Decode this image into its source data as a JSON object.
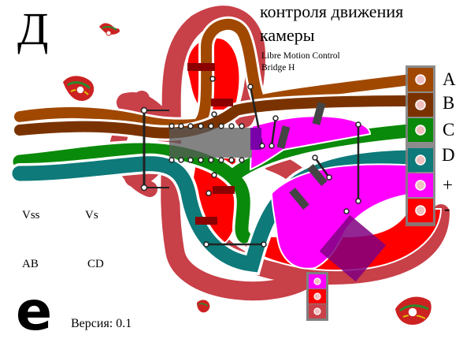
{
  "header": {
    "big_letter": "Д",
    "title_line1": "контроля движения",
    "title_line2": "камеры",
    "subtitle_line1": "Libre Motion Control",
    "subtitle_line2": "Bridge H"
  },
  "connector_labels": [
    "A",
    "B",
    "C",
    "D",
    "+",
    "-"
  ],
  "left_labels": {
    "vss": "Vss",
    "vs": "Vs",
    "ab": "AB",
    "cd": "CD"
  },
  "footer": {
    "logo_glyph": "e",
    "version": "Версия: 0.1"
  },
  "colors": {
    "red_outer": "#c84048",
    "red_fill": "#ff0000",
    "brown_trace": "#a04800",
    "dark_brown_trace": "#7a3300",
    "green_trace": "#0a8a0a",
    "teal_trace": "#0e7a7a",
    "magenta": "#ff00ff",
    "connector_bg": "#707070",
    "purple_chip": "#800080"
  }
}
